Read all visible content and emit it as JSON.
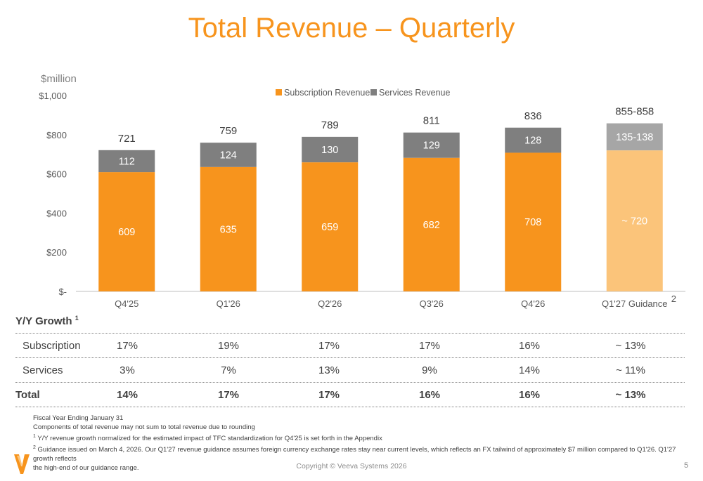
{
  "title": "Total Revenue – Quarterly",
  "chart_data": {
    "type": "bar",
    "stacked": true,
    "unit_label": "$million",
    "y_ticks": [
      "$-",
      "$200",
      "$400",
      "$600",
      "$800",
      "$1,000"
    ],
    "ylim": [
      0,
      1000
    ],
    "grid": false,
    "legend_placement": "top-center",
    "categories": [
      "Q4'25",
      "Q1'26",
      "Q2'26",
      "Q3'26",
      "Q4'26",
      "Q1'27 Guidance"
    ],
    "category_footnote_mark": "2",
    "series": [
      {
        "name": "Subscription Revenue",
        "values": [
          609,
          635,
          659,
          682,
          708,
          720
        ],
        "labels": [
          "609",
          "635",
          "659",
          "682",
          "708",
          "~ 720"
        ],
        "color": "#f7941d",
        "guidance_color": "#fbc47a"
      },
      {
        "name": "Services Revenue",
        "values": [
          112,
          124,
          130,
          129,
          128,
          138
        ],
        "labels": [
          "112",
          "124",
          "130",
          "129",
          "128",
          "135-138"
        ],
        "color": "#7f7f7f",
        "guidance_color": "#a6a6a6"
      }
    ],
    "totals": [
      "721",
      "759",
      "789",
      "811",
      "836",
      "855-858"
    ]
  },
  "growth": {
    "heading": "Y/Y Growth",
    "heading_mark": "1",
    "rows": [
      {
        "label": "Subscription",
        "values": [
          "17%",
          "19%",
          "17%",
          "17%",
          "16%",
          "~ 13%"
        ]
      },
      {
        "label": "Services",
        "values": [
          "3%",
          "7%",
          "13%",
          "9%",
          "14%",
          "~ 11%"
        ]
      },
      {
        "label": "Total",
        "values": [
          "14%",
          "17%",
          "17%",
          "16%",
          "16%",
          "~ 13%"
        ]
      }
    ]
  },
  "footnotes": {
    "line1": "Fiscal Year Ending January 31",
    "line2": "Components of total revenue may not sum to total revenue due to rounding",
    "note1_mark": "1",
    "note1": "Y/Y revenue growth normalized for the estimated impact of TFC standardization for Q4'25 is set forth in the Appendix",
    "note2_mark": "2",
    "note2a": "Guidance issued on March 4, 2026. Our Q1'27 revenue guidance assumes foreign currency exchange rates stay near current levels, which reflects an FX tailwind of approximately $7 million compared to Q1'26. Q1'27 growth reflects",
    "note2b": "the high-end of our guidance range."
  },
  "footer": {
    "copyright": "Copyright © Veeva Systems 2026",
    "page_number": "5"
  },
  "logo_icon": "veeva-v-logo-icon",
  "colors": {
    "accent": "#f7941d",
    "services": "#7f7f7f"
  }
}
